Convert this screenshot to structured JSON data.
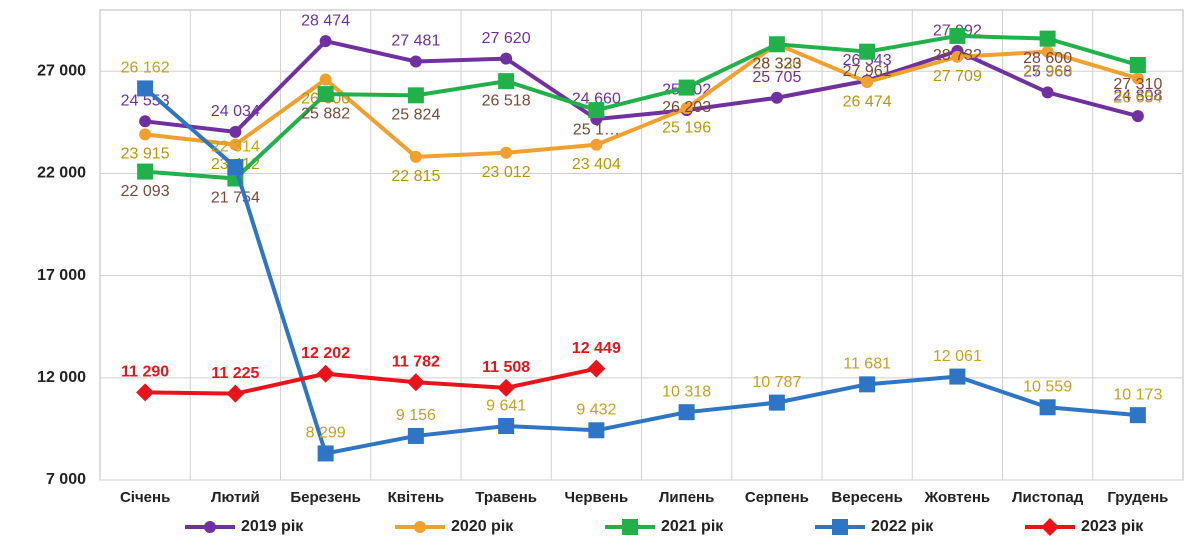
{
  "chart_data": {
    "type": "line",
    "categories": [
      "Січень",
      "Лютий",
      "Березень",
      "Квітень",
      "Травень",
      "Червень",
      "Липень",
      "Серпень",
      "Вересень",
      "Жовтень",
      "Листопад",
      "Грудень"
    ],
    "ylim": [
      7000,
      30000
    ],
    "yticks": [
      {
        "value": 7000,
        "label": "7 000"
      },
      {
        "value": 12000,
        "label": "12 000"
      },
      {
        "value": 17000,
        "label": "17 000"
      },
      {
        "value": 22000,
        "label": "22 000"
      },
      {
        "value": 27000,
        "label": "27 000"
      }
    ],
    "grid": true,
    "legend": "bottom",
    "series": [
      {
        "name": "2019 рік",
        "color": "#7030a0",
        "label_color": "#7030a0",
        "marker": "circle",
        "values": [
          24553,
          24034,
          28474,
          27481,
          27620,
          24660,
          25102,
          25705,
          26543,
          27992,
          25968,
          24808
        ],
        "value_labels": [
          "24 553",
          "24 034",
          "28 474",
          "27 481",
          "27 620",
          "24 660",
          "25 102",
          "25 705",
          "26 543",
          "27 992",
          "25 968",
          "24 808"
        ]
      },
      {
        "name": "2020 рік",
        "color": "#f0a030",
        "label_color": "#b8960c",
        "marker": "circle",
        "values": [
          23915,
          23412,
          26600,
          22815,
          23012,
          23404,
          25196,
          28330,
          26474,
          27709,
          27960,
          26654
        ],
        "value_labels": [
          "23 915",
          "23 412",
          "26 600",
          "22 815",
          "23 012",
          "23 404",
          "25 196",
          "28 330",
          "26 474",
          "27 709",
          "27 960",
          "26 654"
        ]
      },
      {
        "name": "2021 рік",
        "color": "#22b04a",
        "label_color": "#7a4a3a",
        "marker": "square",
        "values": [
          22093,
          21754,
          25882,
          25824,
          26518,
          25100,
          26203,
          28323,
          27961,
          28732,
          28600,
          27310
        ],
        "value_labels": [
          "22 093",
          "21 754",
          "25 882",
          "25 824",
          "26 518",
          "25 1…",
          "26 203",
          "28 323",
          "27 961",
          "28 732",
          "28 600",
          "27 310"
        ]
      },
      {
        "name": "2022 рік",
        "color": "#2e75c6",
        "label_color": "#c8a020",
        "marker": "square",
        "values": [
          26162,
          22314,
          8299,
          9156,
          9641,
          9432,
          10318,
          10787,
          11681,
          12061,
          10559,
          10173
        ],
        "value_labels": [
          "26 162",
          "22 314",
          "8 299",
          "9 156",
          "9 641",
          "9 432",
          "10 318",
          "10 787",
          "11 681",
          "12 061",
          "10 559",
          "10 173"
        ]
      },
      {
        "name": "2023 рік",
        "color": "#e8141c",
        "label_color": "#e8141c",
        "marker": "diamond",
        "values": [
          11290,
          11225,
          12202,
          11782,
          11508,
          12449,
          null,
          null,
          null,
          null,
          null,
          null
        ],
        "value_labels": [
          "11 290",
          "11 225",
          "12 202",
          "11 782",
          "11 508",
          "12 449",
          null,
          null,
          null,
          null,
          null,
          null
        ]
      }
    ]
  }
}
